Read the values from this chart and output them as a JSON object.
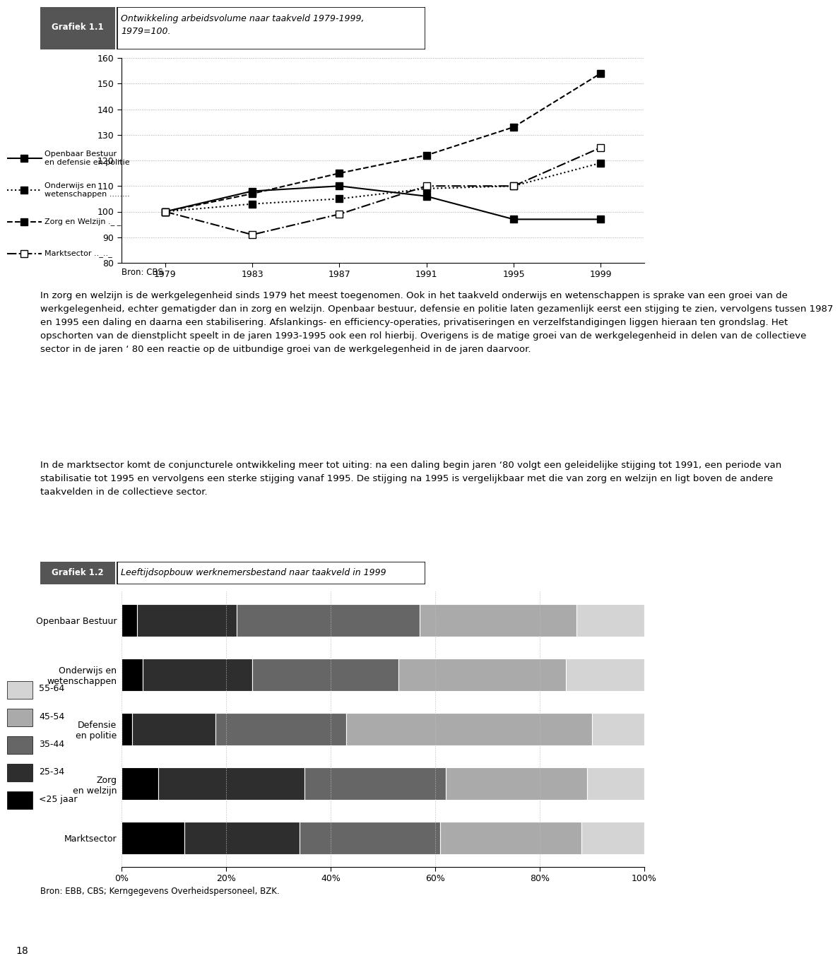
{
  "chart1": {
    "title_label": "Grafiek 1.1",
    "title_text": "Ontwikkeling arbeidsvolume naar taakveld 1979-1999,\n1979=100.",
    "years": [
      1979,
      1983,
      1987,
      1991,
      1995,
      1999
    ],
    "series": [
      {
        "name": "Openbaar Bestuur en defensie en politie",
        "values": [
          100,
          108,
          110,
          106,
          97,
          97
        ],
        "ls": "-",
        "filled": true
      },
      {
        "name": "Onderwijs en wetenschappen",
        "values": [
          100,
          103,
          105,
          109,
          110,
          119
        ],
        "ls": ":",
        "filled": true
      },
      {
        "name": "Zorg en Welzijn",
        "values": [
          100,
          107,
          115,
          122,
          133,
          154
        ],
        "ls": "--",
        "filled": true
      },
      {
        "name": "Marktsector",
        "values": [
          100,
          91,
          99,
          110,
          110,
          125
        ],
        "ls": "-.",
        "filled": false
      }
    ],
    "ylim": [
      80,
      160
    ],
    "yticks": [
      80,
      90,
      100,
      110,
      120,
      130,
      140,
      150,
      160
    ],
    "source": "Bron: CBS"
  },
  "text1": "In zorg en welzijn is de werkgelegenheid sinds 1979 het meest toegenomen. Ook in het taakveld onderwijs en wetenschappen is sprake van een groei van de werkgelegenheid, echter gematigder dan in zorg en welzijn. Openbaar bestuur, defensie en politie laten gezamenlijk eerst een stijging te zien, vervolgens tussen 1987 en 1995 een daling en daarna een stabilisering. Afslankings- en efficiency-operaties, privatiseringen en verzelfstandigingen liggen hieraan ten grondslag. Het opschorten van de dienstplicht speelt in de jaren 1993-1995 ook een rol hierbij. Overigens is de matige groei van de werkgelegenheid in delen van de collectieve sector in de jaren ‘ 80 een reactie op de uitbundige groei van de werkgelegenheid in de jaren daarvoor.",
  "text2": "In de marktsector komt de conjuncturele ontwikkeling meer tot uiting: na een daling begin jaren ‘80 volgt een geleidelijke stijging tot 1991, een periode van stabilisatie tot 1995 en vervolgens een sterke stijging vanaf 1995. De stijging na 1995 is vergelijkbaar met die van zorg en welzijn en ligt boven de andere taakvelden in de collectieve sector.",
  "chart2": {
    "title_label": "Grafiek 1.2",
    "title_text": "Leeftijdsopbouw werknemersbestand naar taakveld in 1999",
    "categories": [
      "Openbaar Bestuur",
      "Onderwijs en\nwetenschappen",
      "Defensie\nen politie",
      "Zorg\nen welzijn",
      "Marktsector"
    ],
    "age_groups": [
      "<25 jaar",
      "25-34",
      "35-44",
      "45-54",
      "55-64"
    ],
    "colors": [
      "#000000",
      "#2e2e2e",
      "#666666",
      "#aaaaaa",
      "#d4d4d4"
    ],
    "data": [
      [
        3,
        19,
        35,
        30,
        13
      ],
      [
        4,
        21,
        28,
        32,
        15
      ],
      [
        2,
        16,
        25,
        47,
        10
      ],
      [
        7,
        28,
        27,
        27,
        11
      ],
      [
        12,
        22,
        27,
        27,
        12
      ]
    ],
    "source": "Bron: EBB, CBS; Kerngegevens Overheidspersoneel, BZK."
  },
  "page_number": "18"
}
